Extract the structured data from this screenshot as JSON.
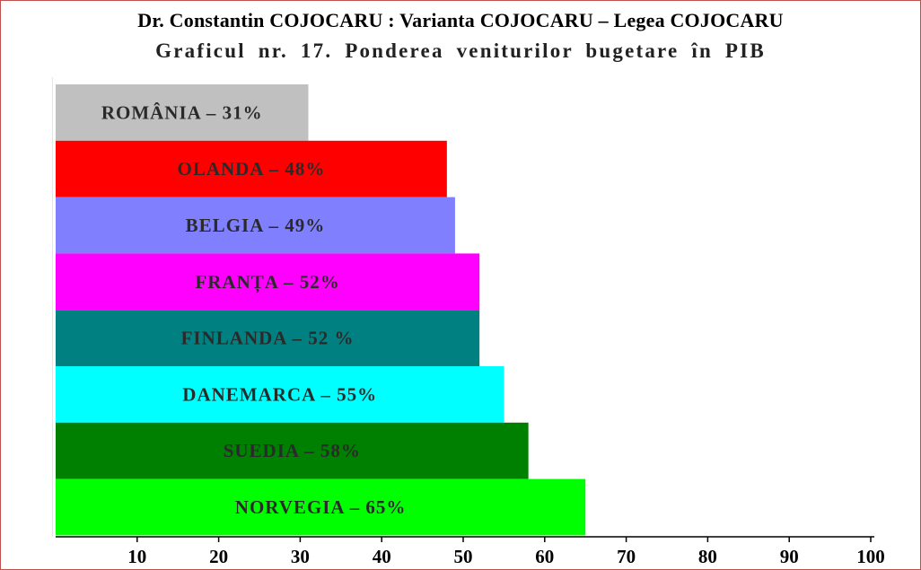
{
  "header": {
    "text": "Dr. Constantin COJOCARU : Varianta COJOCARU – Legea COJOCARU"
  },
  "chart_data": {
    "type": "bar",
    "orientation": "horizontal",
    "title": "Graficul nr. 17. Ponderea  veniturilor bugetare  în  PIB",
    "xlabel": "",
    "ylabel": "",
    "xlim": [
      0,
      100
    ],
    "x_ticks": [
      10,
      20,
      30,
      40,
      50,
      60,
      70,
      80,
      90,
      100
    ],
    "grid": false,
    "legend": "none",
    "bars": [
      {
        "label": "ROMÂNIA – 31%",
        "value": 31,
        "color": "#c0c0c0"
      },
      {
        "label": "OLANDA  –  48%",
        "value": 48,
        "color": "#ff0000"
      },
      {
        "label": "BELGIA  –  49%",
        "value": 49,
        "color": "#8080ff"
      },
      {
        "label": "FRANȚA  –  52%",
        "value": 52,
        "color": "#ff00ff"
      },
      {
        "label": "FINLANDA  –  52 %",
        "value": 52,
        "color": "#008080"
      },
      {
        "label": "DANEMARCA  –  55%",
        "value": 55,
        "color": "#00ffff"
      },
      {
        "label": "SUEDIA  –  58%",
        "value": 58,
        "color": "#008000"
      },
      {
        "label": "NORVEGIA  –  65%",
        "value": 65,
        "color": "#00ff00"
      }
    ]
  }
}
